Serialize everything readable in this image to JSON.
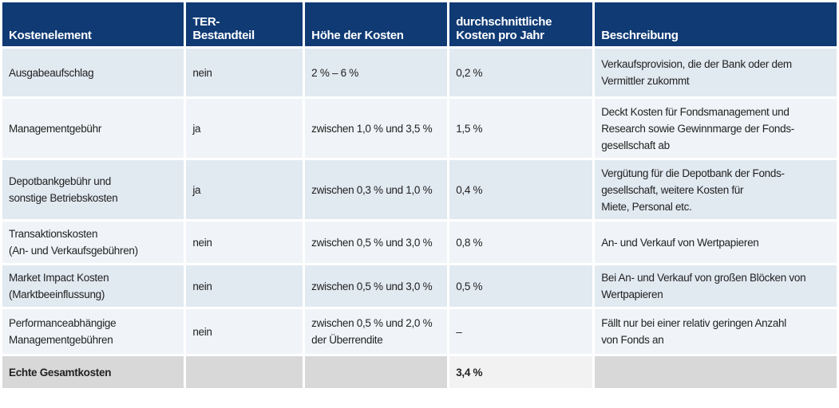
{
  "header": {
    "col1": "Kostenelement",
    "col2": "TER-\nBestandteil",
    "col3": "Höhe der Kosten",
    "col4": "durchschnittliche\nKosten pro Jahr",
    "col5": "Beschreibung"
  },
  "rows": [
    {
      "element": "Ausgabeaufschlag",
      "ter": "nein",
      "hoehe": "2 % – 6 %",
      "durchschnitt": "0,2 %",
      "beschreibung": "Verkaufsprovision, die der Bank oder dem\nVermittler zukommt"
    },
    {
      "element": "Managementgebühr",
      "ter": "ja",
      "hoehe": "zwischen 1,0 % und 3,5 %",
      "durchschnitt": "1,5 %",
      "beschreibung": "Deckt Kosten für Fondsmanagement und\nResearch sowie Gewinnmarge der Fonds-\ngesellschaft ab"
    },
    {
      "element": "Depotbankgebühr und\nsonstige Betriebskosten",
      "ter": "ja",
      "hoehe": "zwischen 0,3 % und 1,0 %",
      "durchschnitt": "0,4 %",
      "beschreibung": "Vergütung für die Depotbank der Fonds-\ngesellschaft, weitere Kosten für\nMiete, Personal etc."
    },
    {
      "element": "Transaktionskosten\n(An- und Verkaufsgebühren)",
      "ter": "nein",
      "hoehe": "zwischen 0,5 % und 3,0 %",
      "durchschnitt": "0,8 %",
      "beschreibung": "An- und Verkauf von Wertpapieren"
    },
    {
      "element": "Market Impact Kosten\n(Marktbeeinflussung)",
      "ter": "nein",
      "hoehe": "zwischen 0,5 % und 3,0 %",
      "durchschnitt": "0,5 %",
      "beschreibung": "Bei An- und Verkauf von großen Blöcken von\nWertpapieren"
    },
    {
      "element": "Performanceabhängige\nManagementgebühren",
      "ter": "nein",
      "hoehe": "zwischen 0,5 % und 2,0 %\nder Überrendite",
      "durchschnitt": "–",
      "beschreibung": "Fällt nur bei einer relativ geringen Anzahl\nvon Fonds an"
    }
  ],
  "total": {
    "label": "Echte Gesamtkosten",
    "value": "3,4 %"
  },
  "colors": {
    "header_bg": "#0f3a74",
    "row_dark": "#e1e9f1",
    "row_light": "#f0f4f8",
    "total_bg": "#d8d8d8"
  }
}
